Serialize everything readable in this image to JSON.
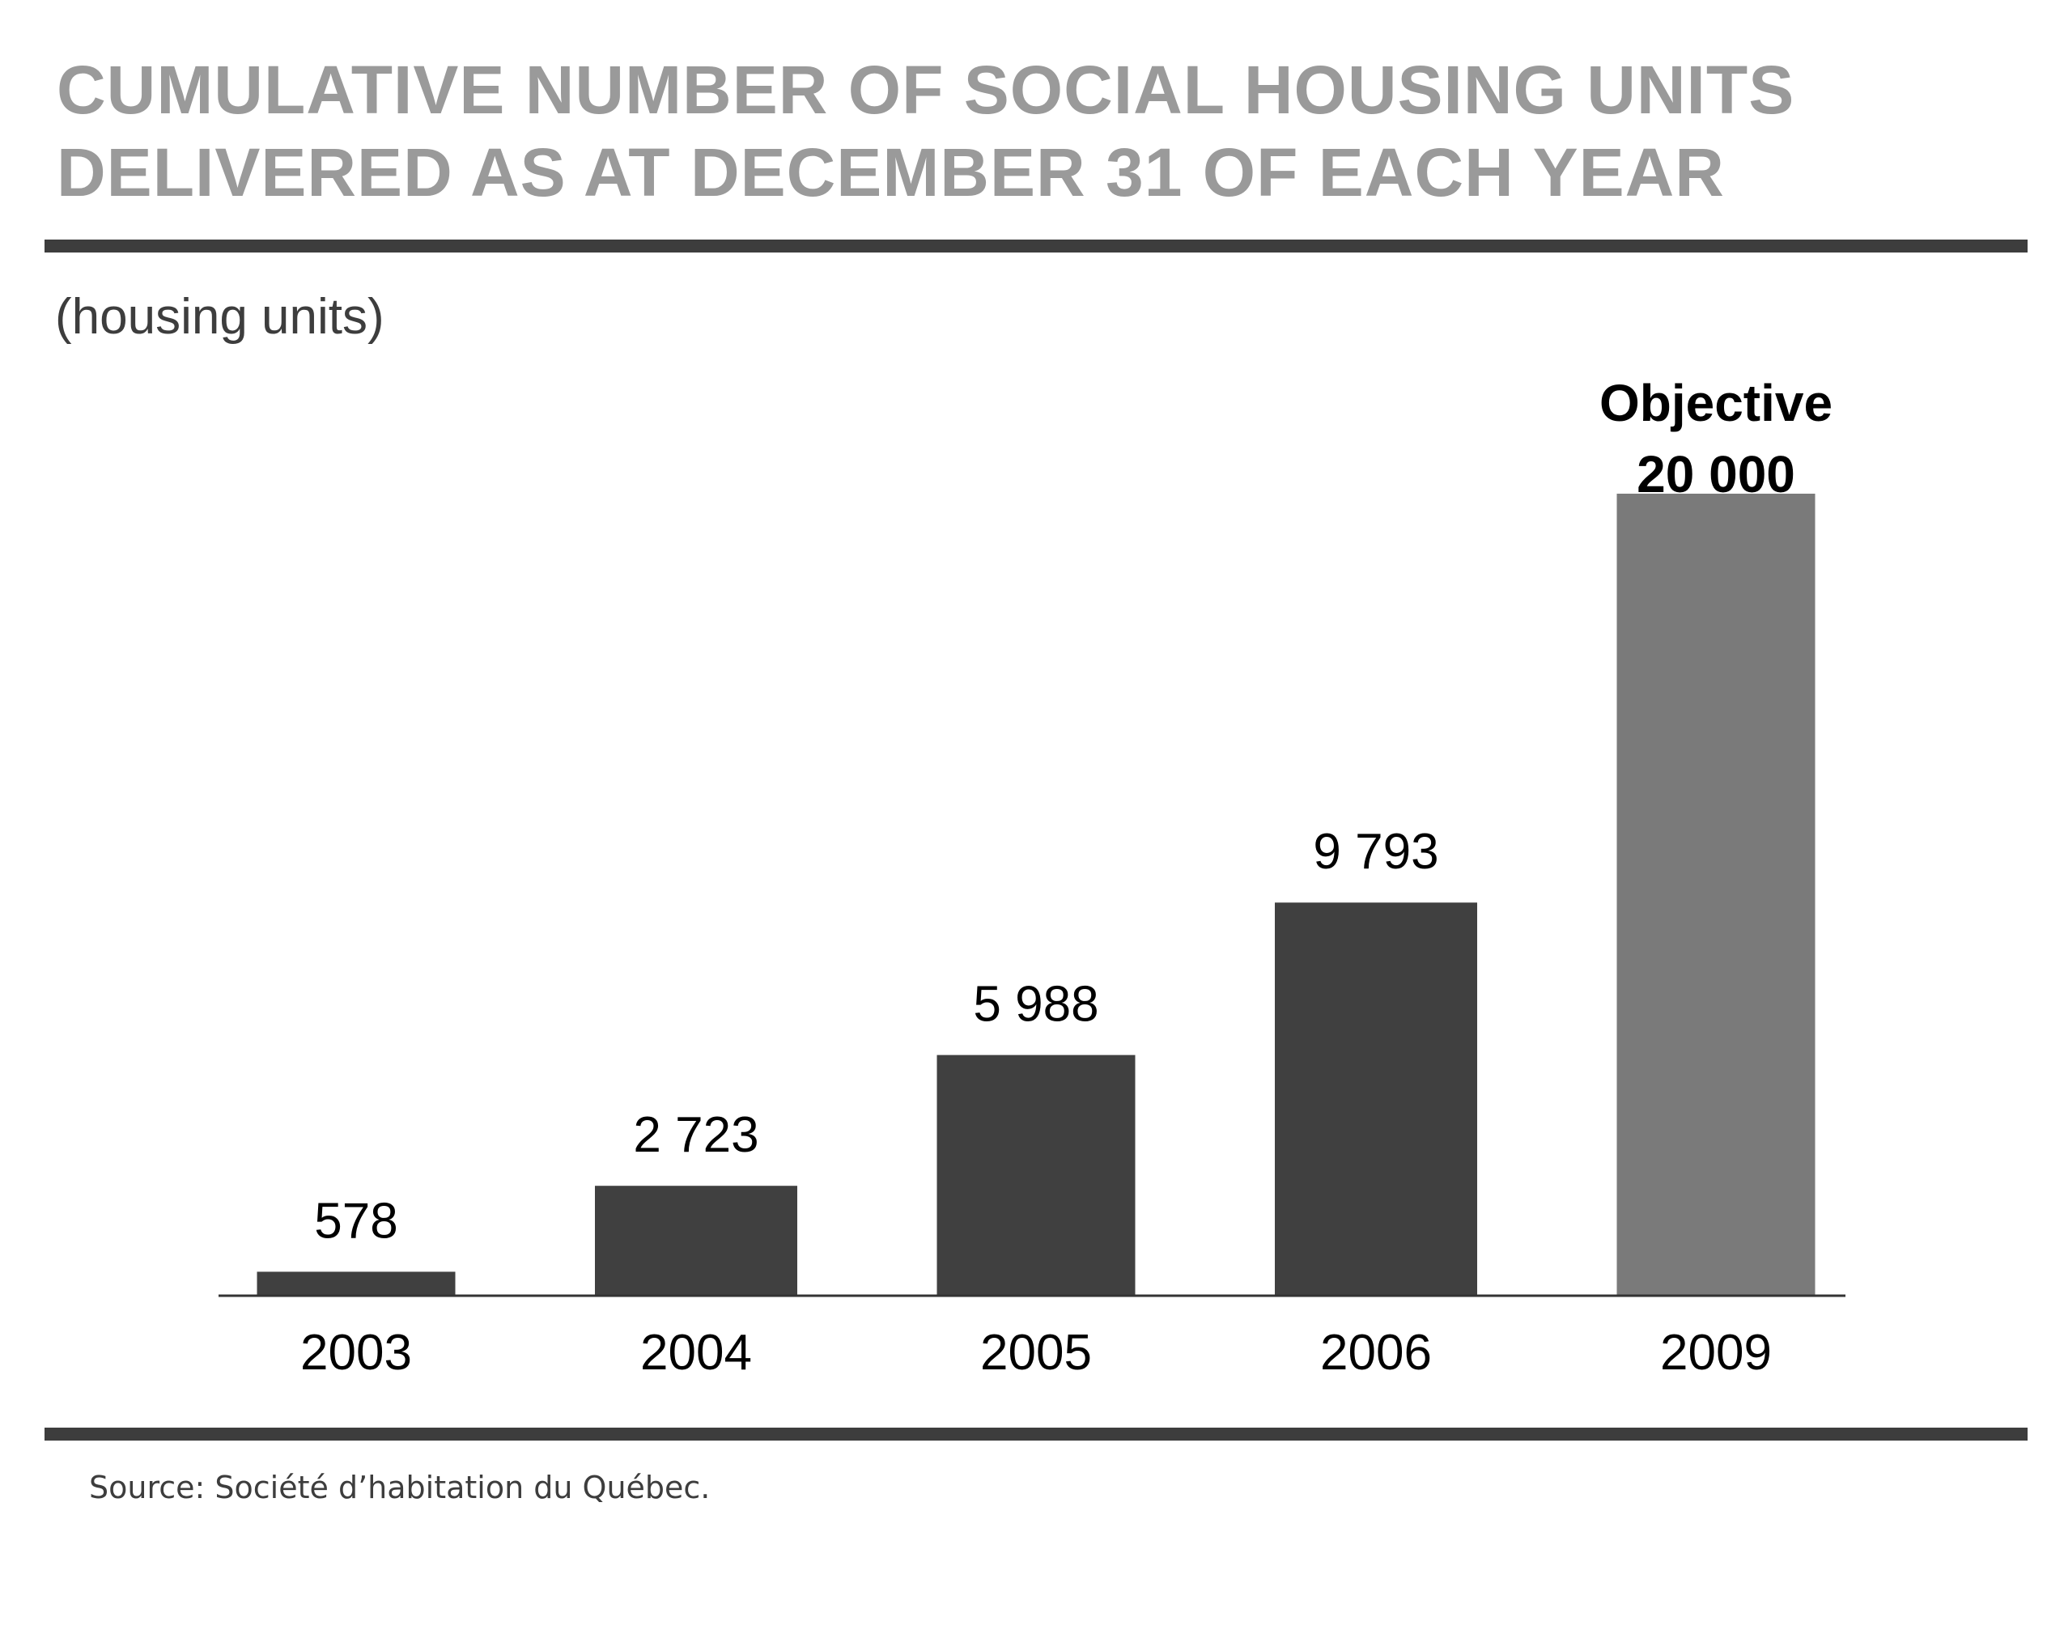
{
  "title_lines": [
    "CUMULATIVE NUMBER OF SOCIAL HOUSING UNITS",
    "DELIVERED AS AT DECEMBER 31 OF EACH YEAR"
  ],
  "unit_label": "(housing units)",
  "source": "Source: Société d’habitation du Québec.",
  "colors": {
    "bar_actual": "#404040",
    "bar_objective": "#7a7a7a",
    "title": "#9a9a9a",
    "rule": "#3d3d3d",
    "text": "#000000"
  },
  "chart_data": {
    "type": "bar",
    "title": "CUMULATIVE NUMBER OF SOCIAL HOUSING UNITS DELIVERED AS AT DECEMBER 31 OF EACH YEAR",
    "ylabel": "(housing units)",
    "xlabel": "",
    "categories": [
      "2003",
      "2004",
      "2005",
      "2006",
      "2009"
    ],
    "values": [
      578,
      2723,
      5988,
      9793,
      20000
    ],
    "value_labels": [
      "578",
      "2 723",
      "5 988",
      "9 793",
      "20 000"
    ],
    "objective_index": 4,
    "objective_label": "Objective",
    "ylim": [
      0,
      20000
    ],
    "grid": false,
    "legend": "none"
  }
}
